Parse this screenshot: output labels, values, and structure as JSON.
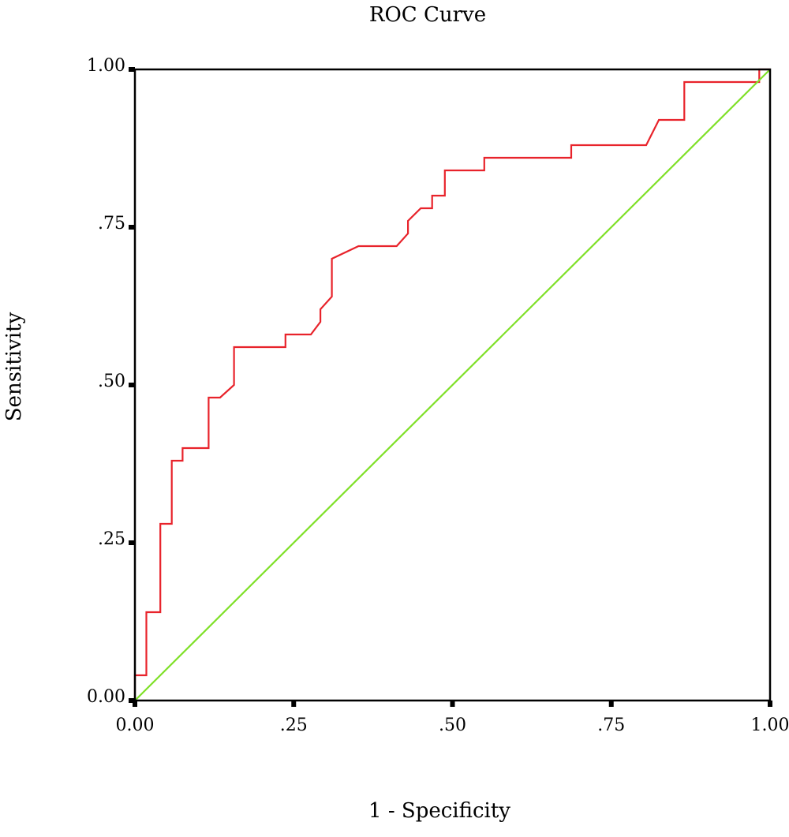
{
  "chart_data": {
    "type": "line",
    "title": "ROC Curve",
    "xlabel": "1 - Specificity",
    "ylabel": "Sensitivity",
    "xlim": [
      0,
      1
    ],
    "ylim": [
      0,
      1
    ],
    "x_ticks": [
      {
        "value": 0,
        "label": "0.00"
      },
      {
        "value": 0.25,
        "label": ".25"
      },
      {
        "value": 0.5,
        "label": ".50"
      },
      {
        "value": 0.75,
        "label": ".75"
      },
      {
        "value": 1,
        "label": "1.00"
      }
    ],
    "y_ticks": [
      {
        "value": 0,
        "label": "0.00"
      },
      {
        "value": 0.25,
        "label": ".25"
      },
      {
        "value": 0.5,
        "label": ".50"
      },
      {
        "value": 0.75,
        "label": ".75"
      },
      {
        "value": 1,
        "label": "1.00"
      }
    ],
    "grid": false,
    "legend": "none",
    "series": [
      {
        "color": "#e8232b",
        "points": [
          [
            0.0,
            0.0
          ],
          [
            0.0,
            0.04
          ],
          [
            0.018,
            0.04
          ],
          [
            0.018,
            0.14
          ],
          [
            0.04,
            0.14
          ],
          [
            0.04,
            0.28
          ],
          [
            0.058,
            0.28
          ],
          [
            0.058,
            0.38
          ],
          [
            0.075,
            0.38
          ],
          [
            0.075,
            0.4
          ],
          [
            0.116,
            0.4
          ],
          [
            0.116,
            0.48
          ],
          [
            0.134,
            0.48
          ],
          [
            0.156,
            0.5
          ],
          [
            0.156,
            0.56
          ],
          [
            0.237,
            0.56
          ],
          [
            0.237,
            0.58
          ],
          [
            0.277,
            0.58
          ],
          [
            0.292,
            0.6
          ],
          [
            0.292,
            0.62
          ],
          [
            0.31,
            0.64
          ],
          [
            0.31,
            0.7
          ],
          [
            0.352,
            0.72
          ],
          [
            0.412,
            0.72
          ],
          [
            0.43,
            0.74
          ],
          [
            0.43,
            0.76
          ],
          [
            0.45,
            0.78
          ],
          [
            0.468,
            0.78
          ],
          [
            0.468,
            0.8
          ],
          [
            0.488,
            0.8
          ],
          [
            0.488,
            0.84
          ],
          [
            0.55,
            0.84
          ],
          [
            0.55,
            0.86
          ],
          [
            0.687,
            0.86
          ],
          [
            0.687,
            0.88
          ],
          [
            0.805,
            0.88
          ],
          [
            0.825,
            0.92
          ],
          [
            0.865,
            0.92
          ],
          [
            0.865,
            0.98
          ],
          [
            0.983,
            0.98
          ],
          [
            0.983,
            1.0
          ],
          [
            1.0,
            1.0
          ]
        ]
      },
      {
        "color": "#7fe028",
        "points": [
          [
            0,
            0
          ],
          [
            1,
            1
          ]
        ]
      }
    ]
  }
}
